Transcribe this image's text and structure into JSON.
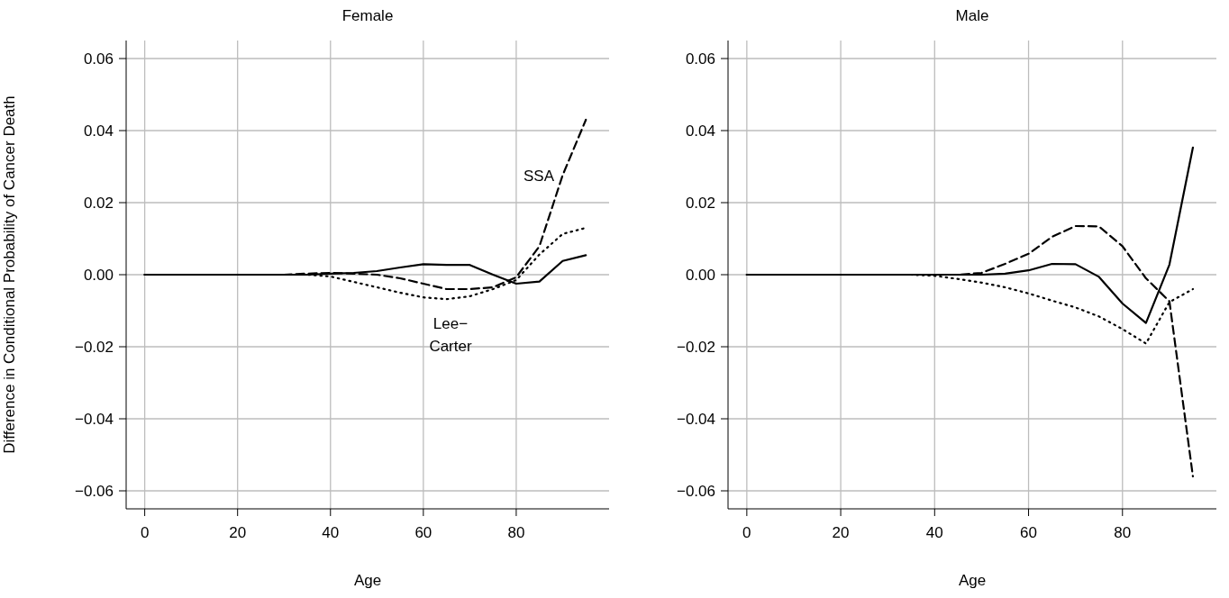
{
  "chart_data": [
    {
      "type": "line",
      "title": "Female",
      "xlabel": "Age",
      "ylabel": "Difference in Conditional Probability of Cancer Death",
      "x": [
        0,
        5,
        10,
        15,
        20,
        25,
        30,
        35,
        40,
        45,
        50,
        55,
        60,
        65,
        70,
        75,
        80,
        85,
        90,
        95
      ],
      "xlim": [
        -4,
        100
      ],
      "xticks": [
        0,
        20,
        40,
        60,
        80
      ],
      "ylim": [
        -0.065,
        0.065
      ],
      "yticks": [
        {
          "value": -0.06,
          "label": "−0.06"
        },
        {
          "value": -0.04,
          "label": "−0.04"
        },
        {
          "value": -0.02,
          "label": "−0.02"
        },
        {
          "value": 0,
          "label": "0.00"
        },
        {
          "value": 0.02,
          "label": "0.02"
        },
        {
          "value": 0.04,
          "label": "0.04"
        },
        {
          "value": 0.06,
          "label": "0.06"
        }
      ],
      "grid": true,
      "marker": "none",
      "series": [
        {
          "color": "#000000",
          "line_style": "solid",
          "values": [
            0,
            0,
            0,
            0,
            0,
            0,
            0,
            0,
            0.0003,
            0.0005,
            0.001,
            0.002,
            0.0029,
            0.0027,
            0.0027,
            0,
            -0.0025,
            -0.0019,
            0.0038,
            0.0054
          ]
        },
        {
          "color": "#000000",
          "line_style": "dashed",
          "values": [
            0,
            0,
            0,
            0,
            0,
            0,
            0,
            0.0003,
            0.0005,
            0.0003,
            0,
            -0.001,
            -0.0025,
            -0.004,
            -0.004,
            -0.0035,
            -0.0007,
            0.0079,
            0.0276,
            0.043
          ]
        },
        {
          "color": "#000000",
          "line_style": "dotted",
          "values": [
            0,
            0,
            0,
            0,
            0,
            0,
            0,
            0,
            -0.0005,
            -0.002,
            -0.0035,
            -0.005,
            -0.0063,
            -0.0068,
            -0.006,
            -0.004,
            -0.0015,
            0.0056,
            0.0113,
            0.013
          ]
        }
      ],
      "annotations": [
        "SSA",
        "Lee−\nCarter"
      ]
    },
    {
      "type": "line",
      "title": "Male",
      "xlabel": "Age",
      "x": [
        0,
        5,
        10,
        15,
        20,
        25,
        30,
        35,
        40,
        45,
        50,
        55,
        60,
        65,
        70,
        75,
        80,
        85,
        90,
        95
      ],
      "xlim": [
        -4,
        100
      ],
      "xticks": [
        0,
        20,
        40,
        60,
        80
      ],
      "ylim": [
        -0.065,
        0.065
      ],
      "yticks": [
        {
          "value": -0.06,
          "label": "−0.06"
        },
        {
          "value": -0.04,
          "label": "−0.04"
        },
        {
          "value": -0.02,
          "label": "−0.02"
        },
        {
          "value": 0,
          "label": "0.00"
        },
        {
          "value": 0.02,
          "label": "0.02"
        },
        {
          "value": 0.04,
          "label": "0.04"
        },
        {
          "value": 0.06,
          "label": "0.06"
        }
      ],
      "grid": true,
      "marker": "none",
      "series": [
        {
          "color": "#000000",
          "line_style": "solid",
          "values": [
            0,
            0,
            0,
            0,
            0,
            0,
            0,
            0,
            0,
            0,
            0,
            0.0003,
            0.0012,
            0.003,
            0.0029,
            -0.0006,
            -0.008,
            -0.0134,
            0.0028,
            0.0353
          ]
        },
        {
          "color": "#000000",
          "line_style": "dashed",
          "values": [
            0,
            0,
            0,
            0,
            0,
            0,
            0,
            0,
            0,
            0,
            0.0005,
            0.003,
            0.0058,
            0.0105,
            0.0135,
            0.0134,
            0.0079,
            -0.001,
            -0.0074,
            -0.056
          ]
        },
        {
          "color": "#000000",
          "line_style": "dotted",
          "values": [
            0,
            0,
            0,
            0,
            0,
            0,
            0,
            0,
            -0.0003,
            -0.0012,
            -0.0022,
            -0.0035,
            -0.0052,
            -0.0072,
            -0.0091,
            -0.0116,
            -0.0151,
            -0.0191,
            -0.0076,
            -0.004
          ]
        }
      ]
    }
  ]
}
